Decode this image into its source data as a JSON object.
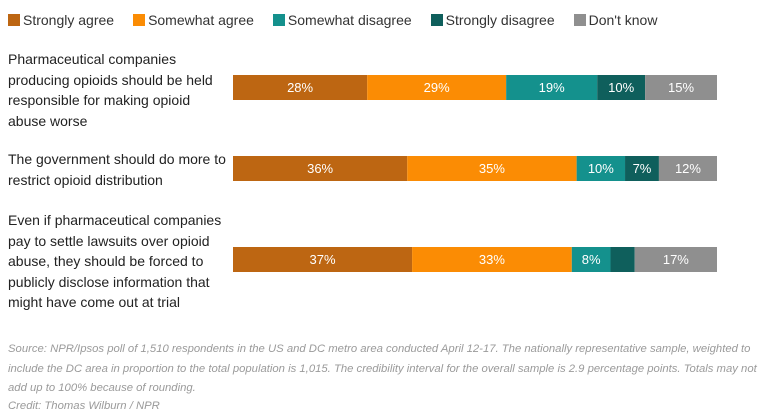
{
  "chart_data": {
    "type": "bar",
    "orientation": "horizontal",
    "stacked": true,
    "normalized": true,
    "legend_position": "top-left",
    "categories": [
      "Pharmaceutical companies producing opioids should be held responsible for making opioid abuse worse",
      "The government should do more to restrict opioid distribution",
      "Even if pharmaceutical companies pay to settle lawsuits over opioid abuse, they should be forced to publicly disclose information that might have come out at trial"
    ],
    "series": [
      {
        "name": "Strongly agree",
        "color": "#bd6612",
        "values": [
          28,
          36,
          37
        ],
        "labels": [
          "28%",
          "36%",
          "37%"
        ]
      },
      {
        "name": "Somewhat agree",
        "color": "#fb8c04",
        "values": [
          29,
          35,
          33
        ],
        "labels": [
          "29%",
          "35%",
          "33%"
        ]
      },
      {
        "name": "Somewhat disagree",
        "color": "#14918d",
        "values": [
          19,
          10,
          8
        ],
        "labels": [
          "19%",
          "10%",
          "8%"
        ]
      },
      {
        "name": "Strongly disagree",
        "color": "#0f5f5c",
        "values": [
          10,
          7,
          5
        ],
        "labels": [
          "10%",
          "7%",
          ""
        ]
      },
      {
        "name": "Don't know",
        "color": "#8f8f8f",
        "values": [
          15,
          12,
          17
        ],
        "labels": [
          "15%",
          "12%",
          "17%"
        ]
      }
    ]
  },
  "source_note": "Source: NPR/Ipsos poll of 1,510 respondents in the US and DC metro area conducted April 12-17. The nationally representative sample, weighted to include the DC area in proportion to the total population is 1,015. The credibility interval for the overall sample is 2.9 percentage points. Totals may not add up to 100% because of rounding.",
  "credit": "Credit: Thomas Wilburn / NPR"
}
